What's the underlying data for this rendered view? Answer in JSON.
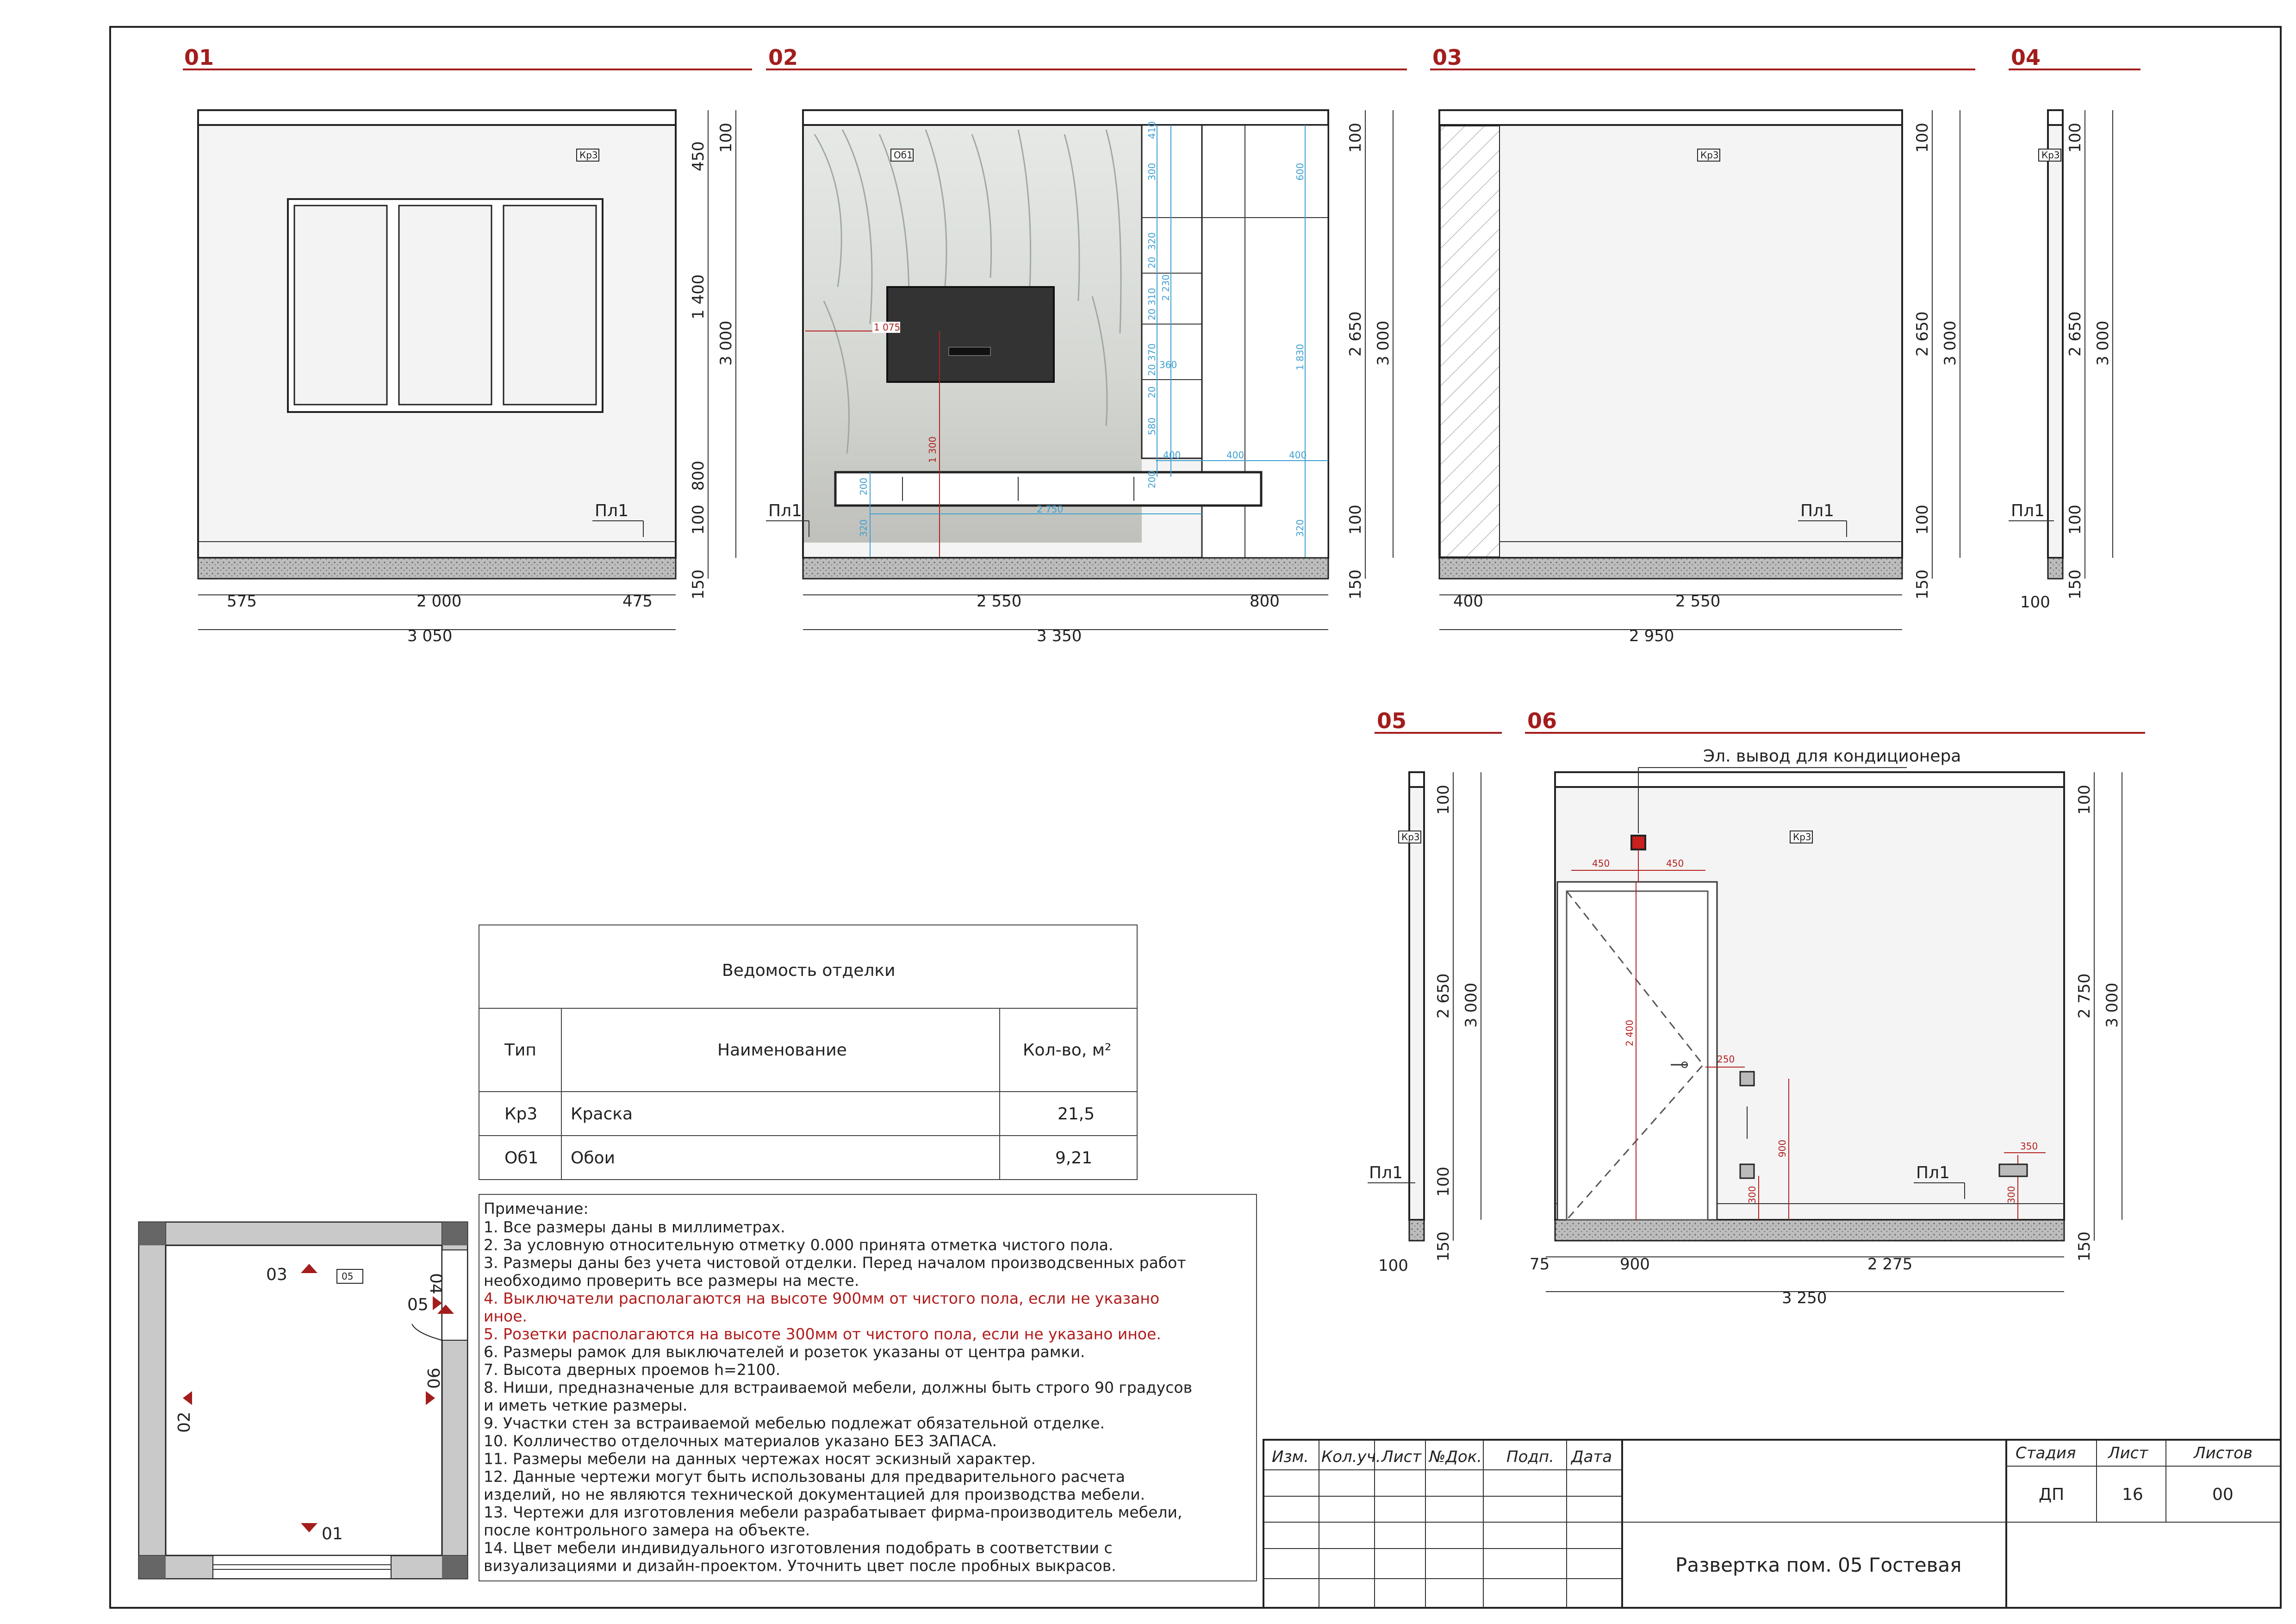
{
  "views": [
    {
      "id": "01",
      "dims": {
        "v": [
          "100",
          "450",
          "1 400",
          "800",
          "100",
          "150"
        ],
        "total": "3 000",
        "h": [
          "575",
          "2 000",
          "475"
        ],
        "htotal": "3 050"
      },
      "tag": "Кр3",
      "floor": "Пл1"
    },
    {
      "id": "02",
      "dims": {
        "v": [
          "100",
          "2 650",
          "100",
          "150"
        ],
        "total": "3 000",
        "h": [
          "2 550",
          "800"
        ],
        "htotal": "3 350"
      },
      "tag": "Об1",
      "floor": "Пл1",
      "inner": {
        "tv_width": "1 075",
        "tv_height": "1 300",
        "console_width": "2 750",
        "console_h1": "200",
        "console_h2": "320",
        "shelves": [
          "410",
          "300",
          "320",
          "20",
          "310",
          "20",
          "2 230",
          "370",
          "20",
          "360",
          "20",
          "580",
          "200"
        ],
        "right_col": [
          "600",
          "1 830",
          "320"
        ],
        "horiz": [
          "400",
          "400",
          "400"
        ]
      }
    },
    {
      "id": "03",
      "dims": {
        "v": [
          "100",
          "2 650",
          "100",
          "150"
        ],
        "total": "3 000",
        "h": [
          "400",
          "2 550"
        ],
        "htotal": "2 950"
      },
      "tag": "Кр3",
      "floor": "Пл1"
    },
    {
      "id": "04",
      "dims": {
        "v": [
          "100",
          "2 650",
          "100",
          "150"
        ],
        "total": "3 000",
        "h": [
          "100"
        ]
      },
      "tag": "Кр3",
      "floor": "Пл1"
    },
    {
      "id": "05",
      "dims": {
        "v": [
          "100",
          "2 650",
          "100",
          "150"
        ],
        "total": "3 000",
        "h": [
          "100"
        ]
      },
      "tag": "Кр3",
      "floor": "Пл1"
    },
    {
      "id": "06",
      "dims": {
        "v": [
          "100",
          "2 750",
          "150"
        ],
        "total": "3 000",
        "h": [
          "75",
          "900",
          "2 275"
        ],
        "htotal": "3 250"
      },
      "tag": "Кр3",
      "floor": "Пл1",
      "label": "Эл. вывод для кондиционера",
      "inner": {
        "door_h": "2 400",
        "ac_l": "450",
        "ac_r": "450",
        "sw_off": "250",
        "sw_h": "900",
        "sock_h": "300",
        "sock2_h": "300",
        "sock2_w": "350"
      }
    }
  ],
  "finish_table": {
    "title": "Ведомость отделки",
    "headers": [
      "Тип",
      "Наименование",
      "Кол-во, м²"
    ],
    "rows": [
      [
        "Кр3",
        "Краска",
        "21,5"
      ],
      [
        "Об1",
        "Обои",
        "9,21"
      ]
    ]
  },
  "notes": {
    "title": "Примечание:",
    "lines": [
      {
        "t": "1. Все размеры даны в миллиметрах.",
        "red": false
      },
      {
        "t": "2. За условную относительную отметку 0.000 принята отметка чистого пола.",
        "red": false
      },
      {
        "t": "3. Размеры даны без учета чистовой отделки. Перед началом производсвенных работ",
        "red": false
      },
      {
        "t": "необходимо проверить все размеры на месте.",
        "red": false
      },
      {
        "t": "4. Выключатели располагаются на высоте 900мм от чистого пола, если не указано",
        "red": true
      },
      {
        "t": "иное.",
        "red": true
      },
      {
        "t": "5. Розетки располагаются на высоте 300мм от чистого пола, если не указано иное.",
        "red": true
      },
      {
        "t": "6. Размеры рамок для выключателей и розеток указаны от центра рамки.",
        "red": false
      },
      {
        "t": "7. Высота дверных проемов h=2100.",
        "red": false
      },
      {
        "t": "8. Ниши, предназначеные для встраиваемой мебели, должны быть строго 90 градусов",
        "red": false
      },
      {
        "t": "и иметь четкие размеры.",
        "red": false
      },
      {
        "t": "9. Участки стен за встраиваемой мебелью подлежат обязательной отделке.",
        "red": false
      },
      {
        "t": "10. Колличество отделочных материалов указано БЕЗ ЗАПАСА.",
        "red": false
      },
      {
        "t": "11. Размеры мебели на данных чертежах носят эскизный характер.",
        "red": false
      },
      {
        "t": "12. Данные чертежи могут быть использованы для предварительного расчета",
        "red": false
      },
      {
        "t": "изделий, но не являются технической документацией для производства мебели.",
        "red": false
      },
      {
        "t": "13. Чертежи для изготовления мебели разрабатывает фирма-производитель мебели,",
        "red": false
      },
      {
        "t": "после контрольного замера на объекте.",
        "red": false
      },
      {
        "t": "14. Цвет мебели индивидуального изготовления подобрать в соответствии с",
        "red": false
      },
      {
        "t": "визуализациями и дизайн-проектом. Уточнить цвет после пробных выкрасов.",
        "red": false
      }
    ]
  },
  "plan": {
    "room": "05",
    "markers": [
      "01",
      "02",
      "03",
      "04",
      "05",
      "06"
    ]
  },
  "title_block": {
    "cols": [
      "Изм.",
      "Кол.уч.",
      "Лист",
      "№Док.",
      "Подп.",
      "Дата"
    ],
    "stage_h": "Стадия",
    "sheet_h": "Лист",
    "sheets_h": "Листов",
    "stage": "ДП",
    "sheet": "16",
    "sheets": "00",
    "title": "Развертка пом. 05 Гостевая"
  },
  "colors": {
    "accent": "#a31d1d",
    "dim_blue": "#3fa0d0",
    "frame": "#222222"
  }
}
